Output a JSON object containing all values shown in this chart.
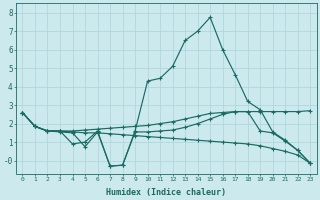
{
  "xlabel": "Humidex (Indice chaleur)",
  "xlim": [
    -0.5,
    23.5
  ],
  "ylim": [
    -0.7,
    8.5
  ],
  "yticks": [
    0,
    1,
    2,
    3,
    4,
    5,
    6,
    7,
    8
  ],
  "ytick_labels": [
    "-0",
    "1",
    "2",
    "3",
    "4",
    "5",
    "6",
    "7",
    "8"
  ],
  "xticks": [
    0,
    1,
    2,
    3,
    4,
    5,
    6,
    7,
    8,
    9,
    10,
    11,
    12,
    13,
    14,
    15,
    16,
    17,
    18,
    19,
    20,
    21,
    22,
    23
  ],
  "bg_color": "#cce9ee",
  "line_color": "#1a6b62",
  "grid_color": "#aad4da",
  "lines": [
    [
      0,
      2.6,
      1,
      1.85,
      2,
      1.6,
      3,
      1.6,
      4,
      1.6,
      5,
      1.65,
      6,
      1.7,
      7,
      1.75,
      8,
      1.8,
      9,
      1.85,
      10,
      1.9,
      11,
      2.0,
      12,
      2.1,
      13,
      2.25,
      14,
      2.4,
      15,
      2.55,
      16,
      2.6,
      17,
      2.65,
      18,
      2.65,
      19,
      2.65,
      20,
      2.65,
      21,
      2.65,
      22,
      2.65,
      23,
      2.7
    ],
    [
      0,
      2.6,
      1,
      1.85,
      2,
      1.6,
      3,
      1.6,
      4,
      0.9,
      5,
      1.0,
      6,
      1.6,
      7,
      -0.3,
      8,
      -0.25,
      9,
      1.6,
      10,
      4.3,
      11,
      4.45,
      12,
      5.1,
      13,
      6.5,
      14,
      7.0,
      15,
      7.75,
      16,
      6.0,
      17,
      4.65,
      18,
      3.2,
      19,
      2.75,
      20,
      1.55,
      21,
      1.1,
      22,
      0.55,
      23,
      -0.15
    ],
    [
      0,
      2.6,
      1,
      1.85,
      2,
      1.6,
      3,
      1.55,
      4,
      1.5,
      5,
      0.75,
      6,
      1.55,
      7,
      -0.3,
      8,
      -0.25,
      9,
      1.55,
      10,
      1.55,
      11,
      1.6,
      12,
      1.65,
      13,
      1.8,
      14,
      2.0,
      15,
      2.25,
      16,
      2.5,
      17,
      2.65,
      18,
      2.65,
      19,
      1.6,
      20,
      1.5,
      21,
      1.05,
      22,
      0.55,
      23,
      -0.15
    ],
    [
      0,
      2.6,
      1,
      1.85,
      2,
      1.6,
      3,
      1.6,
      4,
      1.55,
      5,
      1.5,
      6,
      1.5,
      7,
      1.45,
      8,
      1.4,
      9,
      1.35,
      10,
      1.3,
      11,
      1.25,
      12,
      1.2,
      13,
      1.15,
      14,
      1.1,
      15,
      1.05,
      16,
      1.0,
      17,
      0.95,
      18,
      0.9,
      19,
      0.8,
      20,
      0.65,
      21,
      0.5,
      22,
      0.3,
      23,
      -0.15
    ]
  ]
}
